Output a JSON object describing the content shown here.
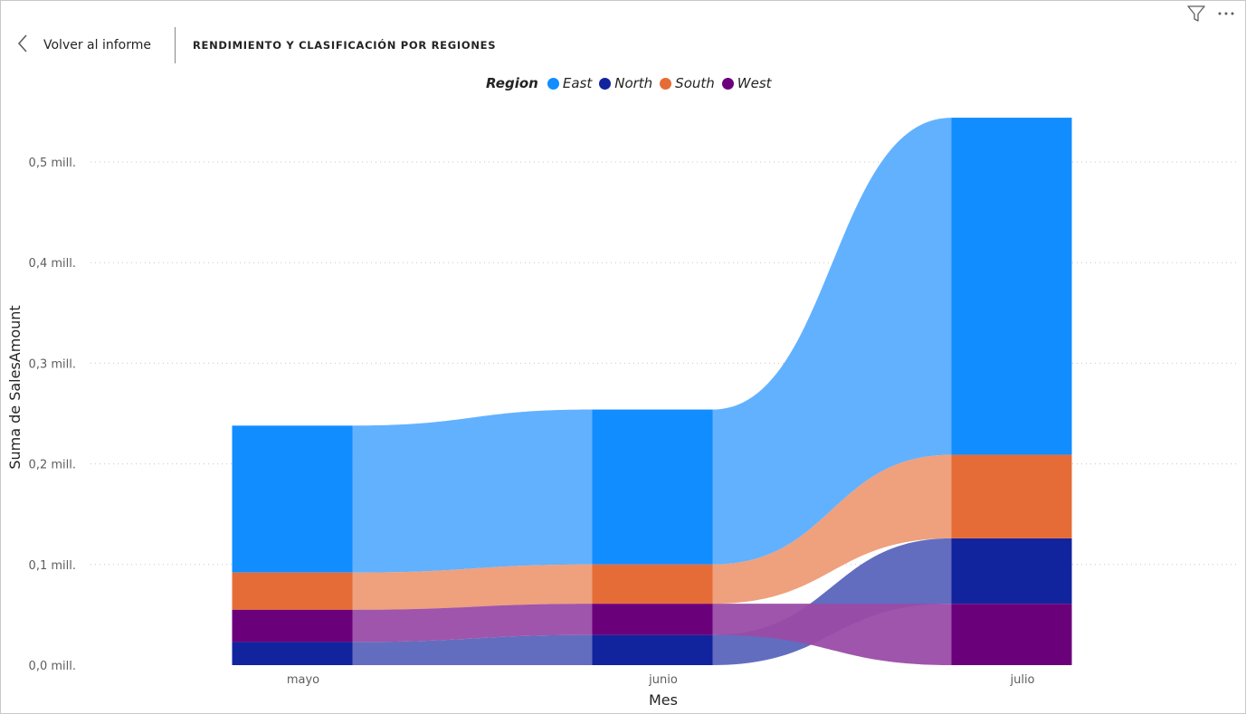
{
  "header": {
    "back_label": "Volver al informe",
    "title": "RENDIMIENTO Y CLASIFICACIÓN POR REGIONES"
  },
  "corner_icons": [
    "filter-icon",
    "more-options-icon"
  ],
  "legend": {
    "title": "Region",
    "items": [
      {
        "label": "East",
        "color": "#118dff"
      },
      {
        "label": "North",
        "color": "#12239e"
      },
      {
        "label": "South",
        "color": "#e66c37"
      },
      {
        "label": "West",
        "color": "#6b007b"
      }
    ]
  },
  "chart_data": {
    "type": "ribbon",
    "xlabel": "Mes",
    "ylabel": "Suma de SalesAmount",
    "categories": [
      "mayo",
      "junio",
      "julio"
    ],
    "yticks": [
      "0,0 mill.",
      "0,1 mill.",
      "0,2 mill.",
      "0,3 mill.",
      "0,4 mill.",
      "0,5 mill."
    ],
    "ylim": [
      0,
      0.55
    ],
    "grid": "dotted horizontal",
    "legend_position": "top-center",
    "series": [
      {
        "name": "East",
        "color": "#118dff",
        "ribbon_color": "#5aadff",
        "values": [
          0.146,
          0.154,
          0.335
        ]
      },
      {
        "name": "North",
        "color": "#12239e",
        "ribbon_color": "#5a65bd",
        "values": [
          0.023,
          0.03,
          0.065
        ]
      },
      {
        "name": "South",
        "color": "#e66c37",
        "ribbon_color": "#ee9b76",
        "values": [
          0.037,
          0.039,
          0.083
        ]
      },
      {
        "name": "West",
        "color": "#6b007b",
        "ribbon_color": "#9a4ca6",
        "values": [
          0.032,
          0.031,
          0.061
        ]
      }
    ],
    "stack_order_bottom_to_top": [
      [
        "North",
        "West",
        "South",
        "East"
      ],
      [
        "North",
        "West",
        "South",
        "East"
      ],
      [
        "West",
        "North",
        "South",
        "East"
      ]
    ]
  }
}
